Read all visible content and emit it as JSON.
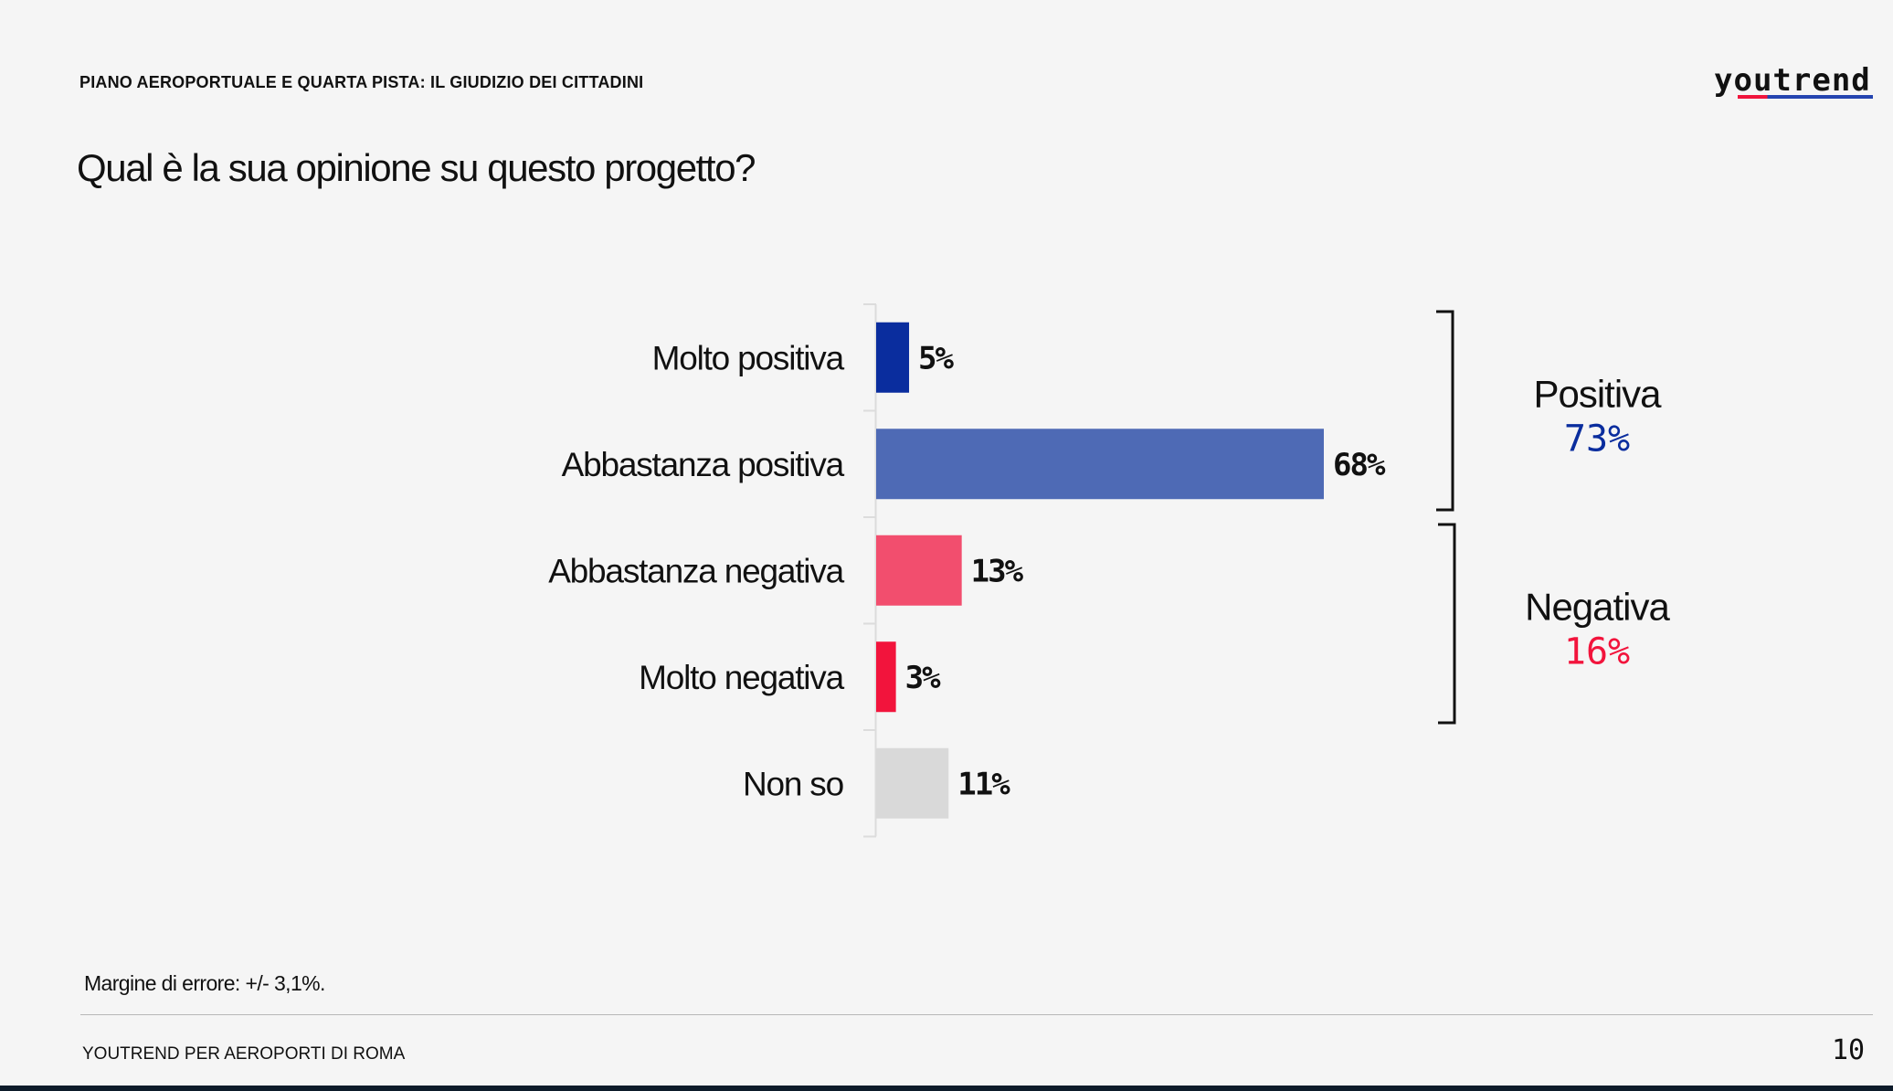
{
  "header": {
    "title": "PIANO AEROPORTUALE E QUARTA PISTA: IL GIUDIZIO DEI CITTADINI",
    "logo": "youtrend"
  },
  "question": "Qual è la sua opinione su questo progetto?",
  "chart_data": {
    "type": "bar",
    "orientation": "horizontal",
    "categories": [
      "Molto positiva",
      "Abbastanza positiva",
      "Abbastanza negativa",
      "Molto negativa",
      "Non so"
    ],
    "values": [
      5,
      68,
      13,
      3,
      11
    ],
    "value_labels": [
      "5%",
      "68%",
      "13%",
      "3%",
      "11%"
    ],
    "colors": [
      "#0a2d9e",
      "#4e6ab5",
      "#f24e6e",
      "#f2143c",
      "#d9d9d9"
    ],
    "xlim": [
      0,
      68
    ],
    "groups": [
      {
        "label": "Positiva",
        "value_label": "73%",
        "value": 73,
        "color": "#0a2d9e",
        "category_range": [
          0,
          1
        ]
      },
      {
        "label": "Negativa",
        "value_label": "16%",
        "value": 16,
        "color": "#f2143c",
        "category_range": [
          2,
          3
        ]
      }
    ]
  },
  "footnote": "Margine di errore: +/- 3,1%.",
  "footer": {
    "left": "YOUTREND PER AEROPORTI DI ROMA",
    "page_number": "10"
  }
}
